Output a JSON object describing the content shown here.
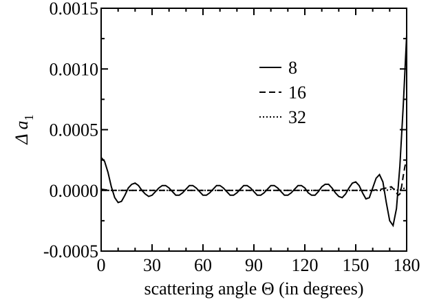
{
  "chart_data": {
    "type": "line",
    "xlabel": "scattering angle Θ (in degrees)",
    "ylabel_main": "Δ a",
    "ylabel_subscript": "1",
    "xlim": [
      0,
      180
    ],
    "ylim": [
      -0.0005,
      0.0015
    ],
    "xticks": [
      0,
      30,
      60,
      90,
      120,
      150,
      180
    ],
    "yticks": [
      -0.0005,
      0.0,
      0.0005,
      0.001,
      0.0015
    ],
    "xtick_labels": [
      "0",
      "30",
      "60",
      "90",
      "120",
      "150",
      "180"
    ],
    "ytick_labels": [
      "-0.0005",
      "0.0000",
      "0.0005",
      "0.0010",
      "0.0015"
    ],
    "grid": false,
    "legend_position": "upper-center",
    "series": [
      {
        "name": "8",
        "style": "solid",
        "x": [
          0,
          2,
          4,
          6,
          8,
          10,
          12,
          14,
          16,
          18,
          20,
          22,
          24,
          26,
          28,
          30,
          32,
          34,
          36,
          38,
          40,
          42,
          44,
          46,
          48,
          50,
          52,
          54,
          56,
          58,
          60,
          62,
          64,
          66,
          68,
          70,
          72,
          74,
          76,
          78,
          80,
          82,
          84,
          86,
          88,
          90,
          92,
          94,
          96,
          98,
          100,
          102,
          104,
          106,
          108,
          110,
          112,
          114,
          116,
          118,
          120,
          122,
          124,
          126,
          128,
          130,
          132,
          134,
          136,
          138,
          140,
          142,
          144,
          146,
          148,
          150,
          152,
          154,
          156,
          158,
          160,
          162,
          164,
          166,
          168,
          170,
          172,
          174,
          176,
          178,
          180
        ],
        "y": [
          0.00027,
          0.00024,
          0.00015,
          3e-05,
          -6e-05,
          -0.0001,
          -9e-05,
          -4e-05,
          2e-05,
          5e-05,
          6e-05,
          4e-05,
          0.0,
          -3e-05,
          -5e-05,
          -4e-05,
          -1e-05,
          2e-05,
          4e-05,
          4e-05,
          2e-05,
          -1e-05,
          -4e-05,
          -4e-05,
          -2e-05,
          1e-05,
          4e-05,
          4e-05,
          2e-05,
          -1e-05,
          -4e-05,
          -4e-05,
          -2e-05,
          1e-05,
          4e-05,
          4e-05,
          2e-05,
          -1e-05,
          -4e-05,
          -4e-05,
          -2e-05,
          1e-05,
          4e-05,
          4e-05,
          2e-05,
          -1e-05,
          -4e-05,
          -4e-05,
          -2e-05,
          1e-05,
          4e-05,
          4e-05,
          2e-05,
          -1e-05,
          -4e-05,
          -4e-05,
          -2e-05,
          1e-05,
          4e-05,
          4e-05,
          2e-05,
          -2e-05,
          -4e-05,
          -4e-05,
          -1e-05,
          3e-05,
          5e-05,
          5e-05,
          2e-05,
          -2e-05,
          -5e-05,
          -6e-05,
          -3e-05,
          2e-05,
          6e-05,
          7e-05,
          4e-05,
          -2e-05,
          -7e-05,
          -6e-05,
          2e-05,
          0.0001,
          0.00013,
          7e-05,
          -0.0001,
          -0.00025,
          -0.00029,
          -0.00015,
          0.0002,
          0.0007,
          0.00128
        ]
      },
      {
        "name": "16",
        "style": "dashed",
        "x": [
          0,
          5,
          10,
          15,
          20,
          30,
          40,
          50,
          60,
          70,
          80,
          90,
          100,
          110,
          120,
          130,
          140,
          150,
          160,
          165,
          168,
          171,
          173,
          175,
          176,
          177,
          178,
          179,
          180
        ],
        "y": [
          1e-05,
          0.0,
          0.0,
          0.0,
          0.0,
          0.0,
          0.0,
          0.0,
          0.0,
          0.0,
          0.0,
          0.0,
          0.0,
          0.0,
          0.0,
          0.0,
          0.0,
          0.0,
          0.0,
          1e-05,
          2e-05,
          3e-05,
          0.0,
          -4e-05,
          -3e-05,
          3e-05,
          0.00012,
          0.0002,
          0.00025
        ]
      },
      {
        "name": "32",
        "style": "dotted",
        "x": [
          0,
          10,
          20,
          40,
          60,
          80,
          100,
          120,
          140,
          160,
          168,
          171,
          173,
          175,
          177,
          179,
          180
        ],
        "y": [
          0.0,
          0.0,
          0.0,
          0.0,
          0.0,
          0.0,
          0.0,
          0.0,
          0.0,
          0.0,
          0.0,
          1e-05,
          1e-05,
          0.0,
          1e-05,
          2e-05,
          3e-05
        ]
      }
    ]
  }
}
